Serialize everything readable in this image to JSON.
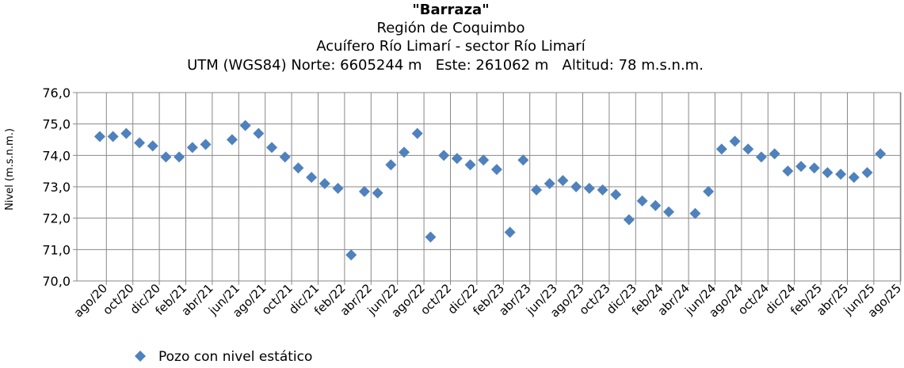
{
  "chart_data": {
    "type": "scatter",
    "title": "\"Barraza\"",
    "subtitles": [
      "Región de Coquimbo",
      "Acuífero Río Limarí - sector Río Limarí",
      "UTM (WGS84) Norte: 6605244 m   Este: 261062 m   Altitud: 78 m.s.n.m."
    ],
    "y_label": "Nivel (m.s.n.m.)",
    "categories": [
      null,
      "ago/20",
      null,
      "oct/20",
      null,
      "dic/20",
      null,
      "feb/21",
      null,
      "abr/21",
      null,
      "jun/21",
      null,
      "ago/21",
      null,
      "oct/21",
      null,
      "dic/21",
      null,
      "feb/22",
      null,
      "abr/22",
      null,
      "jun/22",
      null,
      "ago/22",
      null,
      "oct/22",
      null,
      "dic/22",
      null,
      "feb/23",
      null,
      "abr/23",
      null,
      "jun/23",
      null,
      "ago/23",
      null,
      "oct/23",
      null,
      "dic/23",
      null,
      "feb/24",
      null,
      "abr/24",
      null,
      "jun/24",
      null,
      "ago/24",
      null,
      "oct/24",
      null,
      "dic/24",
      null,
      "feb/25",
      null,
      "abr/25",
      null,
      "jun/25",
      null,
      "ago/25"
    ],
    "series": [
      {
        "name": "Pozo con nivel estático",
        "color": "#4f81bd",
        "values": [
          74.6,
          74.6,
          74.7,
          74.4,
          74.3,
          73.95,
          73.95,
          74.25,
          74.35,
          null,
          74.5,
          74.95,
          74.7,
          74.25,
          73.95,
          73.6,
          73.3,
          73.1,
          72.95,
          70.83,
          72.85,
          72.8,
          73.7,
          74.1,
          74.7,
          71.4,
          74.0,
          73.9,
          73.7,
          73.85,
          73.55,
          71.55,
          73.85,
          72.9,
          73.1,
          73.2,
          73.0,
          72.95,
          72.9,
          72.75,
          71.95,
          72.55,
          72.4,
          72.2,
          null,
          72.15,
          72.85,
          74.2,
          74.45,
          74.2,
          73.95,
          74.05,
          73.5,
          73.65,
          73.6,
          73.45,
          73.4,
          73.3,
          73.45,
          74.05,
          null,
          null
        ]
      }
    ],
    "ylim": [
      70,
      76
    ],
    "yticks": [
      {
        "value": 70,
        "label": "70,0"
      },
      {
        "value": 71,
        "label": "71,0"
      },
      {
        "value": 72,
        "label": "72,0"
      },
      {
        "value": 73,
        "label": "73,0"
      },
      {
        "value": 74,
        "label": "74,0"
      },
      {
        "value": 75,
        "label": "75,0"
      },
      {
        "value": 76,
        "label": "76,0"
      }
    ],
    "grid": true,
    "legend": "bottom-left"
  }
}
